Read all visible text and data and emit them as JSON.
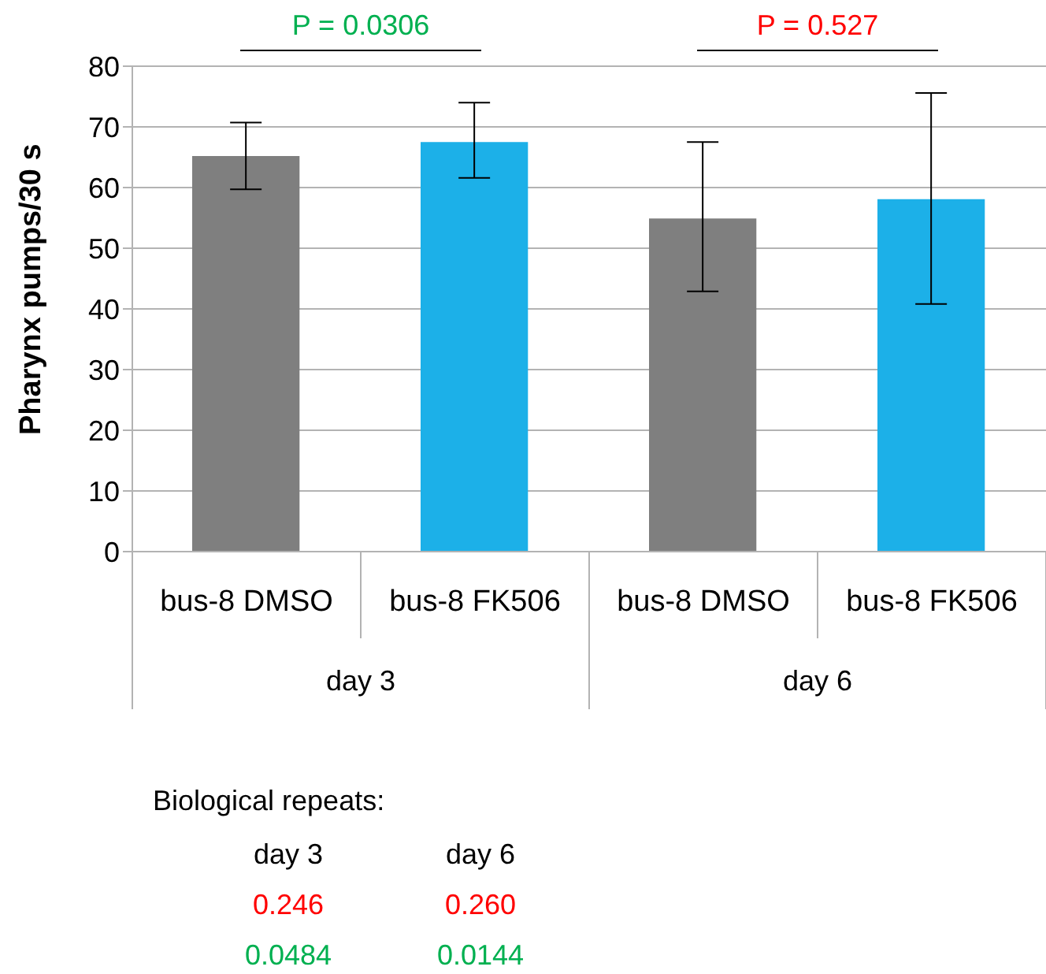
{
  "chart_data": {
    "type": "bar",
    "ylabel": "Pharynx pumps/30 s",
    "categories": [
      "bus-8 DMSO",
      "bus-8 FK506",
      "bus-8 DMSO",
      "bus-8 FK506"
    ],
    "values": [
      65.2,
      67.5,
      54.9,
      58.1
    ],
    "colors": [
      "#7f7f7f",
      "#1cb0e8",
      "#7f7f7f",
      "#1cb0e8"
    ],
    "errors": [
      [
        59.7,
        70.7
      ],
      [
        61.6,
        74
      ],
      [
        42.9,
        67.5
      ],
      [
        40.8,
        75.6
      ]
    ],
    "ylim": [
      0,
      80
    ],
    "yticks": [
      0,
      10,
      20,
      30,
      40,
      50,
      60,
      70,
      80
    ],
    "grid": "y",
    "annotations": [
      "P = 0.0306",
      "P = 0.527",
      "day 3",
      "day 6",
      "Biological repeats:",
      "day 3",
      "day 6",
      "0.246",
      "0.260",
      "0.0484",
      "0.0144"
    ]
  }
}
